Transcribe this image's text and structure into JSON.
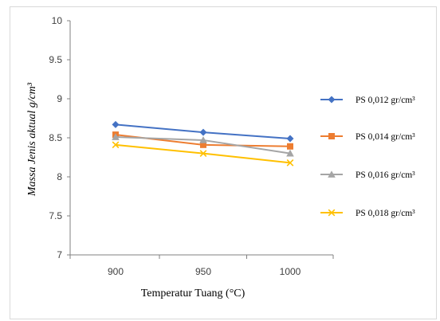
{
  "chart_data": {
    "type": "line",
    "title": "",
    "xlabel": "Temperatur Tuang (°C)",
    "ylabel": "Massa Jenis aktual g/cm³",
    "x": [
      900,
      950,
      1000
    ],
    "xticks": [
      "900",
      "950",
      "1000"
    ],
    "ylim": [
      7,
      10
    ],
    "yticks": [
      "7",
      "7.5",
      "8",
      "8.5",
      "9",
      "9.5",
      "10"
    ],
    "grid": false,
    "legend_position": "right",
    "series": [
      {
        "name": "PS 0,012 gr/cm³",
        "values": [
          8.67,
          8.57,
          8.49
        ],
        "color": "#4472C4",
        "marker": "diamond"
      },
      {
        "name": "PS 0,014 gr/cm³",
        "values": [
          8.54,
          8.41,
          8.39
        ],
        "color": "#ED7D31",
        "marker": "square"
      },
      {
        "name": "PS 0,016 gr/cm³",
        "values": [
          8.51,
          8.47,
          8.3
        ],
        "color": "#A5A5A5",
        "marker": "triangle"
      },
      {
        "name": "PS 0,018 gr/cm³",
        "values": [
          8.41,
          8.3,
          8.18
        ],
        "color": "#FFC000",
        "marker": "x"
      }
    ]
  }
}
